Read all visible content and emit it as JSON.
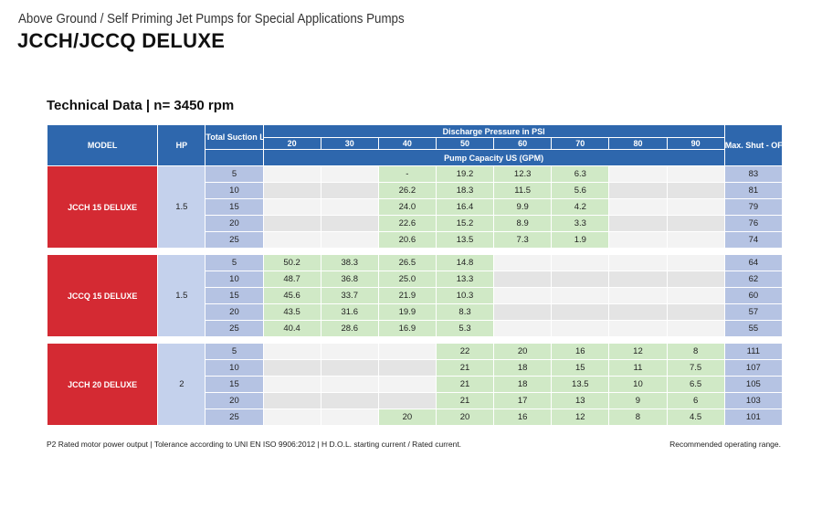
{
  "header": {
    "subtitle": "Above Ground / Self Priming Jet Pumps for Special Applications Pumps",
    "title": "JCCH/JCCQ DELUXE"
  },
  "section": {
    "label": "Technical Data |",
    "rpm": "n= 3450 rpm"
  },
  "table": {
    "headers": {
      "model": "MODEL",
      "hp": "HP",
      "lift": "Total Suction Lift Hs ft",
      "discharge": "Discharge Pressure in PSI",
      "max": "Max. Shut - OFF PSI",
      "capacity": "Pump Capacity US (GPM)"
    },
    "pressures": [
      "20",
      "30",
      "40",
      "50",
      "60",
      "70",
      "80",
      "90"
    ],
    "groups": [
      {
        "model": "JCCH 15 DELUXE",
        "hp": "1.5",
        "rows": [
          {
            "lift": "5",
            "values": [
              "",
              "",
              "-",
              "19.2",
              "12.3",
              "6.3",
              "",
              ""
            ],
            "max": "83"
          },
          {
            "lift": "10",
            "values": [
              "",
              "",
              "26.2",
              "18.3",
              "11.5",
              "5.6",
              "",
              ""
            ],
            "max": "81"
          },
          {
            "lift": "15",
            "values": [
              "",
              "",
              "24.0",
              "16.4",
              "9.9",
              "4.2",
              "",
              ""
            ],
            "max": "79"
          },
          {
            "lift": "20",
            "values": [
              "",
              "",
              "22.6",
              "15.2",
              "8.9",
              "3.3",
              "",
              ""
            ],
            "max": "76"
          },
          {
            "lift": "25",
            "values": [
              "",
              "",
              "20.6",
              "13.5",
              "7.3",
              "1.9",
              "",
              ""
            ],
            "max": "74"
          }
        ]
      },
      {
        "model": "JCCQ 15 DELUXE",
        "hp": "1.5",
        "rows": [
          {
            "lift": "5",
            "values": [
              "50.2",
              "38.3",
              "26.5",
              "14.8",
              "",
              "",
              "",
              ""
            ],
            "max": "64"
          },
          {
            "lift": "10",
            "values": [
              "48.7",
              "36.8",
              "25.0",
              "13.3",
              "",
              "",
              "",
              ""
            ],
            "max": "62"
          },
          {
            "lift": "15",
            "values": [
              "45.6",
              "33.7",
              "21.9",
              "10.3",
              "",
              "",
              "",
              ""
            ],
            "max": "60"
          },
          {
            "lift": "20",
            "values": [
              "43.5",
              "31.6",
              "19.9",
              "8.3",
              "",
              "",
              "",
              ""
            ],
            "max": "57"
          },
          {
            "lift": "25",
            "values": [
              "40.4",
              "28.6",
              "16.9",
              "5.3",
              "",
              "",
              "",
              ""
            ],
            "max": "55"
          }
        ]
      },
      {
        "model": "JCCH 20 DELUXE",
        "hp": "2",
        "rows": [
          {
            "lift": "5",
            "values": [
              "",
              "",
              "",
              "22",
              "20",
              "16",
              "12",
              "8"
            ],
            "max": "111"
          },
          {
            "lift": "10",
            "values": [
              "",
              "",
              "",
              "21",
              "18",
              "15",
              "11",
              "7.5"
            ],
            "max": "107"
          },
          {
            "lift": "15",
            "values": [
              "",
              "",
              "",
              "21",
              "18",
              "13.5",
              "10",
              "6.5"
            ],
            "max": "105"
          },
          {
            "lift": "20",
            "values": [
              "",
              "",
              "",
              "21",
              "17",
              "13",
              "9",
              "6"
            ],
            "max": "103"
          },
          {
            "lift": "25",
            "values": [
              "",
              "",
              "20",
              "20",
              "16",
              "12",
              "8",
              "4.5"
            ],
            "max": "101"
          }
        ]
      }
    ]
  },
  "footer": {
    "note": "P2  Rated motor power output  |  Tolerance according to UNI EN ISO 9906:2012  |  H  D.O.L. starting current / Rated current.",
    "legend": "Recommended operating range."
  }
}
